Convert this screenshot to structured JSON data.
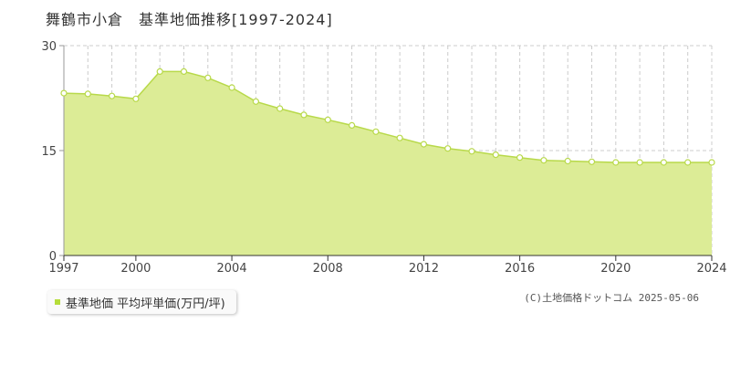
{
  "title": "舞鶴市小倉　基準地価推移[1997-2024]",
  "legend": {
    "label": "基準地価 平均坪単価(万円/坪)",
    "color": "#b5dd3a"
  },
  "copyright": "(C)土地価格ドットコム 2025-05-06",
  "colors": {
    "fill": "#dcec96",
    "line": "#b8d94a",
    "grid": "#cccccc",
    "axis": "#999999"
  },
  "chart_data": {
    "type": "area",
    "x": [
      1997,
      1998,
      1999,
      2000,
      2001,
      2002,
      2003,
      2004,
      2005,
      2006,
      2007,
      2008,
      2009,
      2010,
      2011,
      2012,
      2013,
      2014,
      2015,
      2016,
      2017,
      2018,
      2019,
      2020,
      2021,
      2022,
      2023,
      2024
    ],
    "values": [
      23.2,
      23.1,
      22.8,
      22.4,
      26.3,
      26.3,
      25.4,
      24.0,
      22.0,
      21.0,
      20.1,
      19.4,
      18.6,
      17.7,
      16.8,
      15.9,
      15.3,
      14.9,
      14.4,
      14.0,
      13.6,
      13.5,
      13.4,
      13.3,
      13.3,
      13.3,
      13.3,
      13.3
    ],
    "ylim": [
      0,
      30
    ],
    "yticks": [
      "0",
      "15",
      "30"
    ],
    "xticks": [
      "1997",
      "2000",
      "2004",
      "2008",
      "2012",
      "2016",
      "2020",
      "2024"
    ],
    "grid": true
  }
}
